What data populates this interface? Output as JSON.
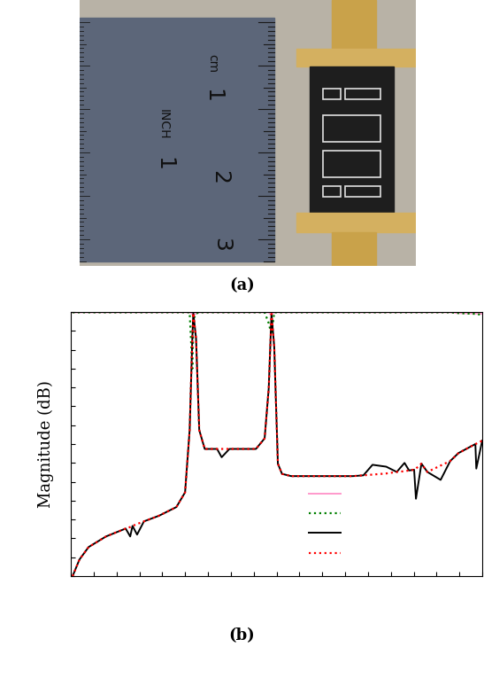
{
  "captions": [
    "(a)",
    "(b)"
  ],
  "photo": {
    "ruler_labels": [
      "cm",
      "1",
      "2",
      "3",
      "INCH",
      "1"
    ]
  },
  "chart_data": {
    "type": "line",
    "y_label": "Magnitude (dB)",
    "x": [
      0.04,
      0.19,
      0.39,
      0.77,
      1.2,
      1.3,
      1.35,
      1.45,
      1.6,
      1.93,
      2.31,
      2.5,
      2.6,
      2.66,
      2.68,
      2.74,
      2.81,
      2.93,
      3.2,
      3.3,
      3.47,
      4.05,
      4.24,
      4.33,
      4.39,
      4.45,
      4.53,
      4.62,
      4.82,
      5.5,
      6.17,
      6.4,
      6.6,
      6.9,
      7.13,
      7.3,
      7.4,
      7.51,
      7.55,
      7.67,
      7.8,
      8.09,
      8.3,
      8.48,
      8.85,
      8.87,
      9.0
    ],
    "series": [
      {
        "color": "#ff99cc",
        "line_style": "solid",
        "values": [
          -0.1,
          -0.1,
          -0.1,
          -0.1,
          -0.1,
          -0.1,
          -0.1,
          -0.1,
          -0.1,
          -0.1,
          -0.1,
          -0.1,
          -0.1,
          -0.5,
          -0.9,
          -0.4,
          -0.1,
          -0.1,
          -0.1,
          -0.1,
          -0.1,
          -0.1,
          -0.1,
          -0.1,
          -0.8,
          -0.1,
          -0.1,
          -0.1,
          -0.1,
          -0.1,
          -0.1,
          -0.1,
          -0.1,
          -0.1,
          -0.1,
          -0.1,
          -0.1,
          -0.1,
          -0.1,
          -0.1,
          -0.1,
          -0.1,
          -0.1,
          -0.3,
          -0.4,
          -0.4,
          -0.5
        ]
      },
      {
        "color": "#008000",
        "line_style": "dotted",
        "values": [
          -0.1,
          -0.1,
          -0.1,
          -0.1,
          -0.1,
          -0.1,
          -0.1,
          -0.1,
          -0.1,
          -0.1,
          -0.1,
          -0.1,
          -0.1,
          -15,
          -2,
          -0.4,
          -0.1,
          -0.1,
          -0.1,
          -0.1,
          -0.1,
          -0.1,
          -0.1,
          -3,
          -6,
          -0.1,
          -0.1,
          -0.1,
          -0.1,
          -0.1,
          -0.1,
          -0.1,
          -0.1,
          -0.1,
          -0.1,
          -0.1,
          -0.1,
          -0.1,
          -0.1,
          -0.1,
          -0.1,
          -0.1,
          -0.1,
          -0.3,
          -0.5,
          -0.5,
          -0.8
        ]
      },
      {
        "color": "#000000",
        "line_style": "solid",
        "values": [
          -70,
          -65.6,
          -62.3,
          -59.5,
          -57.4,
          -59.5,
          -56.7,
          -59,
          -55.5,
          -54,
          -51.7,
          -47.8,
          -31.3,
          -6.4,
          -0.3,
          -7,
          -31.3,
          -36.3,
          -36.3,
          -38.5,
          -36.3,
          -36.3,
          -33.5,
          -20.2,
          -0.5,
          -9.2,
          -40.2,
          -42.9,
          -43.5,
          -43.5,
          -43.5,
          -43.3,
          -40.5,
          -41,
          -42.4,
          -40,
          -42,
          -41.8,
          -49.5,
          -40.2,
          -42.4,
          -44.5,
          -39.5,
          -37.4,
          -35,
          -41.5,
          -34.1
        ]
      },
      {
        "color": "#ff0000",
        "line_style": "dotted",
        "values": [
          -70,
          -65.6,
          -62.3,
          -59.5,
          -57.4,
          -57,
          -56.7,
          -56.2,
          -55.5,
          -54,
          -51.7,
          -47.8,
          -31.3,
          -6.4,
          -0.3,
          -7,
          -31.3,
          -36.3,
          -36.3,
          -36.3,
          -36.3,
          -36.3,
          -33.5,
          -20.2,
          -0.5,
          -9.2,
          -40.2,
          -42.9,
          -43.5,
          -43.5,
          -43.5,
          -43.3,
          -43.1,
          -42.8,
          -42.4,
          -42.2,
          -42,
          -41.8,
          -41.5,
          -40.2,
          -42.4,
          -40.7,
          -39.5,
          -37.4,
          -35,
          -34.9,
          -34.1
        ]
      }
    ],
    "xlim": [
      0,
      9
    ],
    "ylim": [
      -70,
      0
    ],
    "xticks": [
      0,
      0.5,
      1,
      1.5,
      2,
      2.5,
      3,
      3.5,
      4,
      4.5,
      5,
      5.5,
      6,
      6.5,
      7,
      7.5,
      8,
      8.5,
      9
    ],
    "yticks": [
      -70,
      -65,
      -60,
      -55,
      -50,
      -45,
      -40,
      -35,
      -30,
      -25,
      -20,
      -15,
      -10,
      -5,
      0
    ],
    "tick_labels": false,
    "grid": false,
    "legend": "lower center"
  }
}
